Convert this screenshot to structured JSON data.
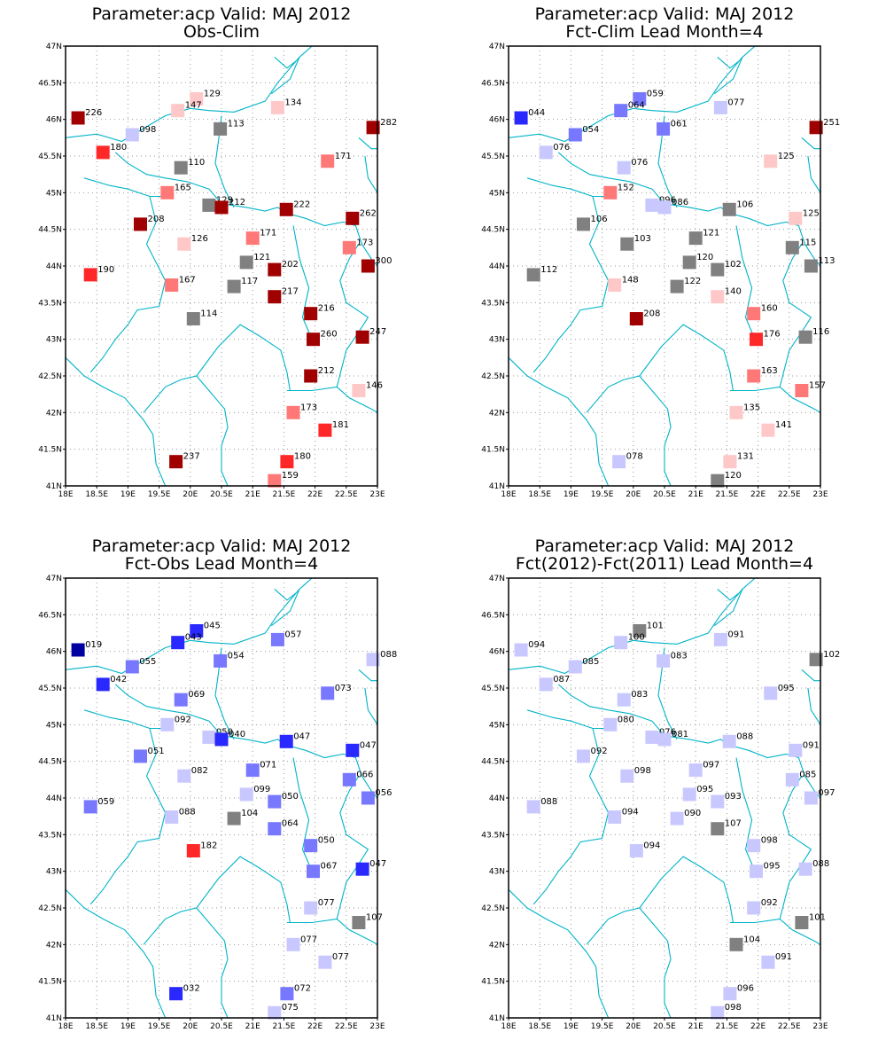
{
  "colors": {
    "frame": "#000000",
    "coast": "#00b4c8",
    "grid": "#9a9a9a",
    "neutral": "#808080",
    "pos1": "#ffc8c8",
    "pos2": "#ff7878",
    "pos3": "#ff2828",
    "pos4": "#a00000",
    "neg1": "#c8c8ff",
    "neg2": "#7878ff",
    "neg3": "#2828ff",
    "neg4": "#0000a0"
  },
  "axes": {
    "lon_ticks": [
      "18E",
      "18.5E",
      "19E",
      "19.5E",
      "20E",
      "20.5E",
      "21E",
      "21.5E",
      "22E",
      "22.5E",
      "23E"
    ],
    "lat_ticks": [
      "41N",
      "41.5N",
      "42N",
      "42.5N",
      "43N",
      "43.5N",
      "44N",
      "44.5N",
      "45N",
      "45.5N",
      "46N",
      "46.5N",
      "47N"
    ],
    "lon_range": [
      18,
      23
    ],
    "lat_range": [
      41,
      47
    ]
  },
  "panels": [
    {
      "title1": "Parameter:acp Valid: MAJ 2012",
      "title2": "Obs-Clim",
      "stations": [
        {
          "lon": 18.2,
          "lat": 46.02,
          "label": "226",
          "cls": "pos4"
        },
        {
          "lon": 19.07,
          "lat": 45.79,
          "label": "098",
          "cls": "neg1"
        },
        {
          "lon": 18.6,
          "lat": 45.55,
          "label": "180",
          "cls": "pos3"
        },
        {
          "lon": 20.1,
          "lat": 46.28,
          "label": "129",
          "cls": "pos1"
        },
        {
          "lon": 19.8,
          "lat": 46.12,
          "label": "147",
          "cls": "pos1"
        },
        {
          "lon": 20.48,
          "lat": 45.87,
          "label": "113",
          "cls": "neutral"
        },
        {
          "lon": 21.4,
          "lat": 46.16,
          "label": "134",
          "cls": "pos1"
        },
        {
          "lon": 22.93,
          "lat": 45.89,
          "label": "282",
          "cls": "pos4"
        },
        {
          "lon": 22.2,
          "lat": 45.43,
          "label": "171",
          "cls": "pos2"
        },
        {
          "lon": 19.85,
          "lat": 45.34,
          "label": "110",
          "cls": "neutral"
        },
        {
          "lon": 19.63,
          "lat": 45.0,
          "label": "165",
          "cls": "pos2"
        },
        {
          "lon": 20.3,
          "lat": 44.83,
          "label": "129",
          "cls": "neutral"
        },
        {
          "lon": 20.5,
          "lat": 44.8,
          "label": "212",
          "cls": "pos4"
        },
        {
          "lon": 21.54,
          "lat": 44.77,
          "label": "222",
          "cls": "pos4"
        },
        {
          "lon": 22.6,
          "lat": 44.65,
          "label": "262",
          "cls": "pos4"
        },
        {
          "lon": 19.2,
          "lat": 44.57,
          "label": "208",
          "cls": "pos4"
        },
        {
          "lon": 19.9,
          "lat": 44.3,
          "label": "126",
          "cls": "pos1"
        },
        {
          "lon": 21.0,
          "lat": 44.38,
          "label": "171",
          "cls": "pos2"
        },
        {
          "lon": 22.55,
          "lat": 44.25,
          "label": "173",
          "cls": "pos2"
        },
        {
          "lon": 20.9,
          "lat": 44.05,
          "label": "121",
          "cls": "neutral"
        },
        {
          "lon": 21.35,
          "lat": 43.95,
          "label": "202",
          "cls": "pos4"
        },
        {
          "lon": 22.85,
          "lat": 44.0,
          "label": "300",
          "cls": "pos4"
        },
        {
          "lon": 18.4,
          "lat": 43.88,
          "label": "190",
          "cls": "pos3"
        },
        {
          "lon": 19.7,
          "lat": 43.74,
          "label": "167",
          "cls": "pos2"
        },
        {
          "lon": 20.7,
          "lat": 43.72,
          "label": "117",
          "cls": "neutral"
        },
        {
          "lon": 21.35,
          "lat": 43.58,
          "label": "217",
          "cls": "pos4"
        },
        {
          "lon": 21.93,
          "lat": 43.35,
          "label": "216",
          "cls": "pos4"
        },
        {
          "lon": 20.05,
          "lat": 43.28,
          "label": "114",
          "cls": "neutral"
        },
        {
          "lon": 21.97,
          "lat": 43.0,
          "label": "260",
          "cls": "pos4"
        },
        {
          "lon": 22.76,
          "lat": 43.03,
          "label": "247",
          "cls": "pos4"
        },
        {
          "lon": 21.93,
          "lat": 42.5,
          "label": "212",
          "cls": "pos4"
        },
        {
          "lon": 22.7,
          "lat": 42.3,
          "label": "146",
          "cls": "pos1"
        },
        {
          "lon": 21.65,
          "lat": 42.0,
          "label": "173",
          "cls": "pos2"
        },
        {
          "lon": 22.16,
          "lat": 41.76,
          "label": "181",
          "cls": "pos3"
        },
        {
          "lon": 19.77,
          "lat": 41.33,
          "label": "237",
          "cls": "pos4"
        },
        {
          "lon": 21.55,
          "lat": 41.33,
          "label": "180",
          "cls": "pos3"
        },
        {
          "lon": 21.35,
          "lat": 41.07,
          "label": "159",
          "cls": "pos2"
        }
      ]
    },
    {
      "title1": "Parameter:acp Valid: MAJ 2012",
      "title2": "Fct-Clim Lead Month=4",
      "stations": [
        {
          "lon": 18.2,
          "lat": 46.02,
          "label": "044",
          "cls": "neg3"
        },
        {
          "lon": 19.07,
          "lat": 45.79,
          "label": "054",
          "cls": "neg2"
        },
        {
          "lon": 18.6,
          "lat": 45.55,
          "label": "076",
          "cls": "neg1"
        },
        {
          "lon": 20.1,
          "lat": 46.28,
          "label": "059",
          "cls": "neg2"
        },
        {
          "lon": 19.8,
          "lat": 46.12,
          "label": "064",
          "cls": "neg2"
        },
        {
          "lon": 20.48,
          "lat": 45.87,
          "label": "061",
          "cls": "neg2"
        },
        {
          "lon": 21.4,
          "lat": 46.16,
          "label": "077",
          "cls": "neg1"
        },
        {
          "lon": 22.93,
          "lat": 45.89,
          "label": "251",
          "cls": "pos4"
        },
        {
          "lon": 22.2,
          "lat": 45.43,
          "label": "125",
          "cls": "pos1"
        },
        {
          "lon": 19.85,
          "lat": 45.34,
          "label": "076",
          "cls": "neg1"
        },
        {
          "lon": 19.63,
          "lat": 45.0,
          "label": "152",
          "cls": "pos2"
        },
        {
          "lon": 20.3,
          "lat": 44.83,
          "label": "096",
          "cls": "neg1"
        },
        {
          "lon": 20.5,
          "lat": 44.8,
          "label": "086",
          "cls": "neg1"
        },
        {
          "lon": 21.54,
          "lat": 44.77,
          "label": "106",
          "cls": "neutral"
        },
        {
          "lon": 22.6,
          "lat": 44.65,
          "label": "125",
          "cls": "pos1"
        },
        {
          "lon": 19.2,
          "lat": 44.57,
          "label": "106",
          "cls": "neutral"
        },
        {
          "lon": 19.9,
          "lat": 44.3,
          "label": "103",
          "cls": "neutral"
        },
        {
          "lon": 21.0,
          "lat": 44.38,
          "label": "121",
          "cls": "neutral"
        },
        {
          "lon": 22.55,
          "lat": 44.25,
          "label": "115",
          "cls": "neutral"
        },
        {
          "lon": 20.9,
          "lat": 44.05,
          "label": "120",
          "cls": "neutral"
        },
        {
          "lon": 21.35,
          "lat": 43.95,
          "label": "102",
          "cls": "neutral"
        },
        {
          "lon": 22.85,
          "lat": 44.0,
          "label": "113",
          "cls": "neutral"
        },
        {
          "lon": 18.4,
          "lat": 43.88,
          "label": "112",
          "cls": "neutral"
        },
        {
          "lon": 19.7,
          "lat": 43.74,
          "label": "148",
          "cls": "pos1"
        },
        {
          "lon": 20.7,
          "lat": 43.72,
          "label": "122",
          "cls": "neutral"
        },
        {
          "lon": 21.35,
          "lat": 43.58,
          "label": "140",
          "cls": "pos1"
        },
        {
          "lon": 21.93,
          "lat": 43.35,
          "label": "160",
          "cls": "pos2"
        },
        {
          "lon": 20.05,
          "lat": 43.28,
          "label": "208",
          "cls": "pos4"
        },
        {
          "lon": 21.97,
          "lat": 43.0,
          "label": "176",
          "cls": "pos3"
        },
        {
          "lon": 22.76,
          "lat": 43.03,
          "label": "116",
          "cls": "neutral"
        },
        {
          "lon": 21.93,
          "lat": 42.5,
          "label": "163",
          "cls": "pos2"
        },
        {
          "lon": 22.7,
          "lat": 42.3,
          "label": "157",
          "cls": "pos2"
        },
        {
          "lon": 21.65,
          "lat": 42.0,
          "label": "135",
          "cls": "pos1"
        },
        {
          "lon": 22.16,
          "lat": 41.76,
          "label": "141",
          "cls": "pos1"
        },
        {
          "lon": 19.77,
          "lat": 41.33,
          "label": "078",
          "cls": "neg1"
        },
        {
          "lon": 21.55,
          "lat": 41.33,
          "label": "131",
          "cls": "pos1"
        },
        {
          "lon": 21.35,
          "lat": 41.07,
          "label": "120",
          "cls": "neutral"
        }
      ]
    },
    {
      "title1": "Parameter:acp Valid: MAJ 2012",
      "title2": "Fct-Obs Lead Month=4",
      "stations": [
        {
          "lon": 18.2,
          "lat": 46.02,
          "label": "019",
          "cls": "neg4"
        },
        {
          "lon": 19.07,
          "lat": 45.79,
          "label": "055",
          "cls": "neg2"
        },
        {
          "lon": 18.6,
          "lat": 45.55,
          "label": "042",
          "cls": "neg3"
        },
        {
          "lon": 20.1,
          "lat": 46.28,
          "label": "045",
          "cls": "neg3"
        },
        {
          "lon": 19.8,
          "lat": 46.12,
          "label": "043",
          "cls": "neg3"
        },
        {
          "lon": 20.48,
          "lat": 45.87,
          "label": "054",
          "cls": "neg2"
        },
        {
          "lon": 21.4,
          "lat": 46.16,
          "label": "057",
          "cls": "neg2"
        },
        {
          "lon": 22.93,
          "lat": 45.89,
          "label": "088",
          "cls": "neg1"
        },
        {
          "lon": 22.2,
          "lat": 45.43,
          "label": "073",
          "cls": "neg2"
        },
        {
          "lon": 19.85,
          "lat": 45.34,
          "label": "069",
          "cls": "neg2"
        },
        {
          "lon": 19.63,
          "lat": 45.0,
          "label": "092",
          "cls": "neg1"
        },
        {
          "lon": 20.3,
          "lat": 44.83,
          "label": "050",
          "cls": "neg1"
        },
        {
          "lon": 20.5,
          "lat": 44.8,
          "label": "040",
          "cls": "neg3"
        },
        {
          "lon": 21.54,
          "lat": 44.77,
          "label": "047",
          "cls": "neg3"
        },
        {
          "lon": 22.6,
          "lat": 44.65,
          "label": "047",
          "cls": "neg3"
        },
        {
          "lon": 19.2,
          "lat": 44.57,
          "label": "051",
          "cls": "neg2"
        },
        {
          "lon": 19.9,
          "lat": 44.3,
          "label": "082",
          "cls": "neg1"
        },
        {
          "lon": 21.0,
          "lat": 44.38,
          "label": "071",
          "cls": "neg2"
        },
        {
          "lon": 22.55,
          "lat": 44.25,
          "label": "066",
          "cls": "neg2"
        },
        {
          "lon": 20.9,
          "lat": 44.05,
          "label": "099",
          "cls": "neg1"
        },
        {
          "lon": 21.35,
          "lat": 43.95,
          "label": "050",
          "cls": "neg2"
        },
        {
          "lon": 22.85,
          "lat": 44.0,
          "label": "056",
          "cls": "neg2"
        },
        {
          "lon": 18.4,
          "lat": 43.88,
          "label": "059",
          "cls": "neg2"
        },
        {
          "lon": 19.7,
          "lat": 43.74,
          "label": "088",
          "cls": "neg1"
        },
        {
          "lon": 20.7,
          "lat": 43.72,
          "label": "104",
          "cls": "neutral"
        },
        {
          "lon": 21.35,
          "lat": 43.58,
          "label": "064",
          "cls": "neg2"
        },
        {
          "lon": 21.93,
          "lat": 43.35,
          "label": "050",
          "cls": "neg2"
        },
        {
          "lon": 20.05,
          "lat": 43.28,
          "label": "182",
          "cls": "pos3"
        },
        {
          "lon": 21.97,
          "lat": 43.0,
          "label": "067",
          "cls": "neg2"
        },
        {
          "lon": 22.76,
          "lat": 43.03,
          "label": "047",
          "cls": "neg3"
        },
        {
          "lon": 21.93,
          "lat": 42.5,
          "label": "077",
          "cls": "neg1"
        },
        {
          "lon": 22.7,
          "lat": 42.3,
          "label": "107",
          "cls": "neutral"
        },
        {
          "lon": 21.65,
          "lat": 42.0,
          "label": "077",
          "cls": "neg1"
        },
        {
          "lon": 22.16,
          "lat": 41.76,
          "label": "077",
          "cls": "neg1"
        },
        {
          "lon": 19.77,
          "lat": 41.33,
          "label": "032",
          "cls": "neg3"
        },
        {
          "lon": 21.55,
          "lat": 41.33,
          "label": "072",
          "cls": "neg2"
        },
        {
          "lon": 21.35,
          "lat": 41.07,
          "label": "075",
          "cls": "neg1"
        }
      ]
    },
    {
      "title1": "Parameter:acp Valid: MAJ 2012",
      "title2": "Fct(2012)-Fct(2011) Lead Month=4",
      "stations": [
        {
          "lon": 18.2,
          "lat": 46.02,
          "label": "094",
          "cls": "neg1"
        },
        {
          "lon": 19.07,
          "lat": 45.79,
          "label": "085",
          "cls": "neg1"
        },
        {
          "lon": 18.6,
          "lat": 45.55,
          "label": "087",
          "cls": "neg1"
        },
        {
          "lon": 20.1,
          "lat": 46.28,
          "label": "101",
          "cls": "neutral"
        },
        {
          "lon": 19.8,
          "lat": 46.12,
          "label": "100",
          "cls": "neg1"
        },
        {
          "lon": 20.48,
          "lat": 45.87,
          "label": "083",
          "cls": "neg1"
        },
        {
          "lon": 21.4,
          "lat": 46.16,
          "label": "091",
          "cls": "neg1"
        },
        {
          "lon": 22.93,
          "lat": 45.89,
          "label": "102",
          "cls": "neutral"
        },
        {
          "lon": 22.2,
          "lat": 45.43,
          "label": "095",
          "cls": "neg1"
        },
        {
          "lon": 19.85,
          "lat": 45.34,
          "label": "083",
          "cls": "neg1"
        },
        {
          "lon": 19.63,
          "lat": 45.0,
          "label": "080",
          "cls": "neg1"
        },
        {
          "lon": 20.3,
          "lat": 44.83,
          "label": "076",
          "cls": "neg1"
        },
        {
          "lon": 20.5,
          "lat": 44.8,
          "label": "081",
          "cls": "neg1"
        },
        {
          "lon": 21.54,
          "lat": 44.77,
          "label": "088",
          "cls": "neg1"
        },
        {
          "lon": 22.6,
          "lat": 44.65,
          "label": "091",
          "cls": "neg1"
        },
        {
          "lon": 19.2,
          "lat": 44.57,
          "label": "092",
          "cls": "neg1"
        },
        {
          "lon": 19.9,
          "lat": 44.3,
          "label": "098",
          "cls": "neg1"
        },
        {
          "lon": 21.0,
          "lat": 44.38,
          "label": "097",
          "cls": "neg1"
        },
        {
          "lon": 22.55,
          "lat": 44.25,
          "label": "085",
          "cls": "neg1"
        },
        {
          "lon": 20.9,
          "lat": 44.05,
          "label": "095",
          "cls": "neg1"
        },
        {
          "lon": 21.35,
          "lat": 43.95,
          "label": "093",
          "cls": "neg1"
        },
        {
          "lon": 22.85,
          "lat": 44.0,
          "label": "097",
          "cls": "neg1"
        },
        {
          "lon": 18.4,
          "lat": 43.88,
          "label": "088",
          "cls": "neg1"
        },
        {
          "lon": 19.7,
          "lat": 43.74,
          "label": "094",
          "cls": "neg1"
        },
        {
          "lon": 20.7,
          "lat": 43.72,
          "label": "090",
          "cls": "neg1"
        },
        {
          "lon": 21.35,
          "lat": 43.58,
          "label": "107",
          "cls": "neutral"
        },
        {
          "lon": 21.93,
          "lat": 43.35,
          "label": "098",
          "cls": "neg1"
        },
        {
          "lon": 20.05,
          "lat": 43.28,
          "label": "094",
          "cls": "neg1"
        },
        {
          "lon": 21.97,
          "lat": 43.0,
          "label": "095",
          "cls": "neg1"
        },
        {
          "lon": 22.76,
          "lat": 43.03,
          "label": "088",
          "cls": "neg1"
        },
        {
          "lon": 21.93,
          "lat": 42.5,
          "label": "092",
          "cls": "neg1"
        },
        {
          "lon": 22.7,
          "lat": 42.3,
          "label": "101",
          "cls": "neutral"
        },
        {
          "lon": 21.65,
          "lat": 42.0,
          "label": "104",
          "cls": "neutral"
        },
        {
          "lon": 22.16,
          "lat": 41.76,
          "label": "091",
          "cls": "neg1"
        },
        {
          "lon": 21.55,
          "lat": 41.33,
          "label": "096",
          "cls": "neg1"
        },
        {
          "lon": 21.35,
          "lat": 41.07,
          "label": "098",
          "cls": "neg1"
        }
      ]
    }
  ]
}
